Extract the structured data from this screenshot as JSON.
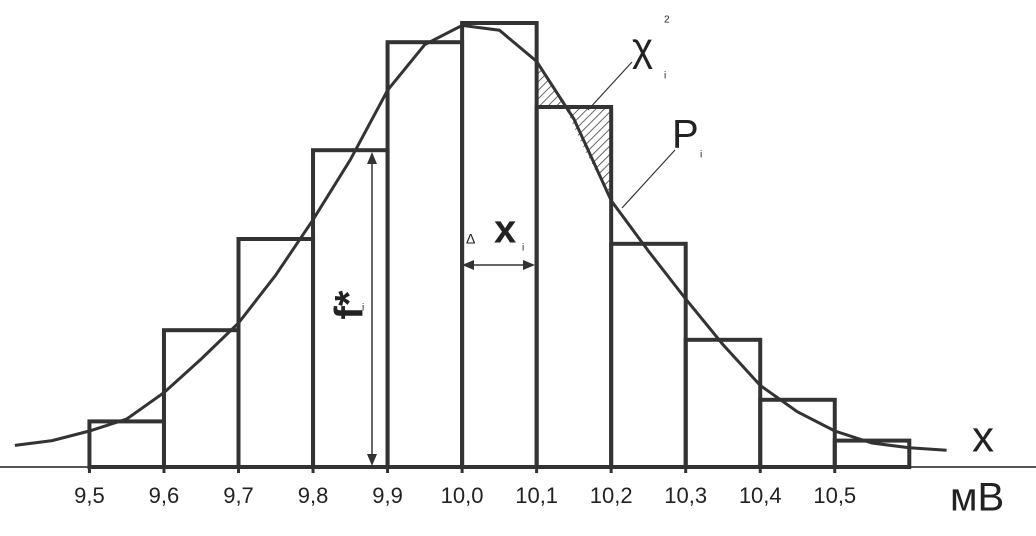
{
  "chart_data": {
    "type": "histogram",
    "bins": [
      9.5,
      9.6,
      9.7,
      9.8,
      9.9,
      10.0,
      10.1,
      10.2,
      10.3,
      10.4,
      10.5,
      10.6
    ],
    "values": [
      0.019,
      0.057,
      0.095,
      0.132,
      0.177,
      0.185,
      0.15,
      0.093,
      0.053,
      0.028,
      0.011
    ],
    "curve": {
      "x": [
        9.4,
        9.45,
        9.5,
        9.55,
        9.6,
        9.65,
        9.7,
        9.75,
        9.8,
        9.85,
        9.9,
        9.95,
        10.0,
        10.05,
        10.1,
        10.15,
        10.2,
        10.25,
        10.3,
        10.35,
        10.4,
        10.45,
        10.5,
        10.55,
        10.6,
        10.65
      ],
      "values": [
        0.009,
        0.011,
        0.015,
        0.02,
        0.031,
        0.045,
        0.06,
        0.08,
        0.103,
        0.128,
        0.157,
        0.176,
        0.184,
        0.182,
        0.169,
        0.145,
        0.111,
        0.09,
        0.07,
        0.051,
        0.034,
        0.023,
        0.015,
        0.01,
        0.008,
        0.007
      ]
    },
    "xlim": [
      9.38,
      10.77
    ],
    "ylim": [
      0,
      0.19
    ],
    "xticks": [
      {
        "value": 9.5,
        "label": "9,5"
      },
      {
        "value": 9.6,
        "label": "9,6"
      },
      {
        "value": 9.7,
        "label": "9,7"
      },
      {
        "value": 9.8,
        "label": "9,8"
      },
      {
        "value": 9.9,
        "label": "9,9"
      },
      {
        "value": 10.0,
        "label": "10,0"
      },
      {
        "value": 10.1,
        "label": "10,1"
      },
      {
        "value": 10.2,
        "label": "10,2"
      },
      {
        "value": 10.3,
        "label": "10,3"
      },
      {
        "value": 10.4,
        "label": "10,4"
      },
      {
        "value": 10.5,
        "label": "10,5"
      }
    ],
    "x_label": "x",
    "unit": "мВ",
    "annotations": {
      "chi": "χ",
      "chi_sup": "2",
      "chi_sub": "i",
      "p": "P",
      "p_sub": "i",
      "f": "f*",
      "f_sub": "i",
      "delta": "Δ",
      "dx": "x",
      "dx_sub": "i"
    },
    "color": "#333333"
  }
}
